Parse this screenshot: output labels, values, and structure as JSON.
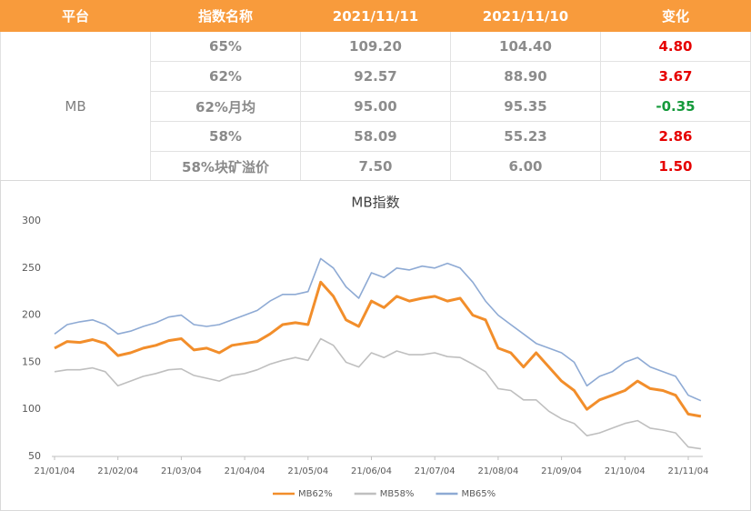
{
  "table": {
    "header": [
      "平台",
      "指数名称",
      "2021/11/11",
      "2021/11/10",
      "变化"
    ],
    "platform": "MB",
    "rows": [
      [
        "65%",
        "109.20",
        "104.40",
        "4.80"
      ],
      [
        "62%",
        "92.57",
        "88.90",
        "3.67"
      ],
      [
        "62%月均",
        "95.00",
        "95.35",
        "-0.35"
      ],
      [
        "58%",
        "58.09",
        "55.23",
        "2.86"
      ],
      [
        "58%块矿溢价",
        "7.50",
        "6.00",
        "1.50"
      ]
    ]
  },
  "chart_data": {
    "type": "line",
    "title": "MB指数",
    "categories": [
      "21/01/04",
      null,
      null,
      null,
      null,
      "21/02/04",
      null,
      null,
      null,
      null,
      "21/03/04",
      null,
      null,
      null,
      null,
      "21/04/04",
      null,
      null,
      null,
      null,
      "21/05/04",
      null,
      null,
      null,
      null,
      "21/06/04",
      null,
      null,
      null,
      null,
      "21/07/04",
      null,
      null,
      null,
      null,
      "21/08/04",
      null,
      null,
      null,
      null,
      "21/09/04",
      null,
      null,
      null,
      null,
      "21/10/04",
      null,
      null,
      null,
      null,
      "21/11/04",
      null
    ],
    "series": [
      {
        "name": "MB62%",
        "color": "#f28e2b",
        "values": [
          165,
          172,
          171,
          174,
          170,
          157,
          160,
          165,
          168,
          173,
          175,
          163,
          165,
          160,
          168,
          170,
          172,
          180,
          190,
          192,
          190,
          235,
          220,
          195,
          188,
          215,
          208,
          220,
          215,
          218,
          220,
          215,
          218,
          200,
          195,
          165,
          160,
          145,
          160,
          145,
          130,
          120,
          100,
          110,
          115,
          120,
          130,
          122,
          120,
          115,
          95,
          92.57
        ]
      },
      {
        "name": "MB58%",
        "color": "#bfbfbf",
        "values": [
          140,
          142,
          142,
          144,
          140,
          125,
          130,
          135,
          138,
          142,
          143,
          136,
          133,
          130,
          136,
          138,
          142,
          148,
          152,
          155,
          152,
          175,
          168,
          150,
          145,
          160,
          155,
          162,
          158,
          158,
          160,
          156,
          155,
          148,
          140,
          122,
          120,
          110,
          110,
          98,
          90,
          85,
          72,
          75,
          80,
          85,
          88,
          80,
          78,
          75,
          60,
          58.09
        ]
      },
      {
        "name": "MB65%",
        "color": "#8eaad4",
        "values": [
          180,
          190,
          193,
          195,
          190,
          180,
          183,
          188,
          192,
          198,
          200,
          190,
          188,
          190,
          195,
          200,
          205,
          215,
          222,
          222,
          225,
          260,
          250,
          230,
          218,
          245,
          240,
          250,
          248,
          252,
          250,
          255,
          250,
          235,
          215,
          200,
          190,
          180,
          170,
          165,
          160,
          150,
          125,
          135,
          140,
          150,
          155,
          145,
          140,
          135,
          115,
          109.2
        ]
      }
    ],
    "ylim": [
      50,
      300
    ],
    "yticks": [
      50,
      100,
      150,
      200,
      250,
      300
    ],
    "grid": false,
    "legend": "bottom"
  }
}
